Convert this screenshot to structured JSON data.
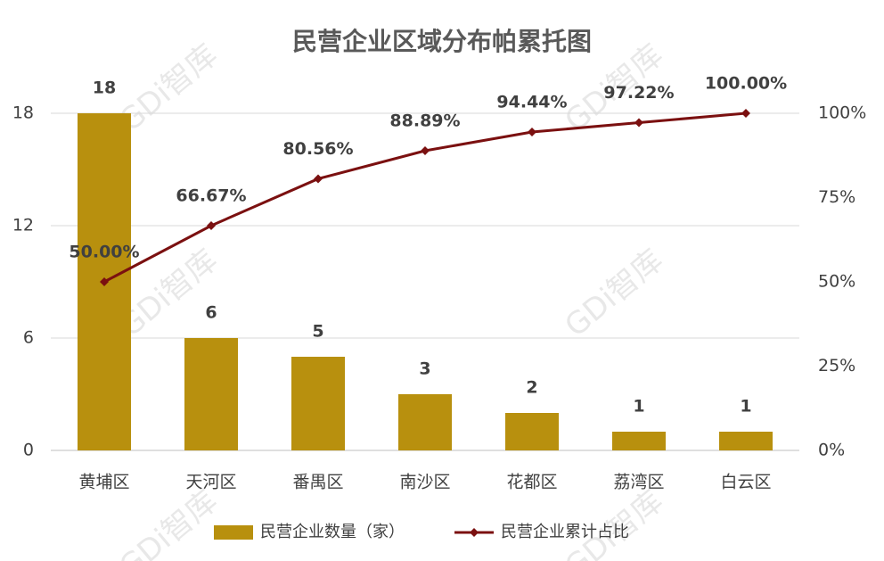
{
  "chart_data": {
    "type": "bar",
    "title": "民营企业区域分布帕累托图",
    "watermark": "GDi智库",
    "categories": [
      "黄埔区",
      "天河区",
      "番禺区",
      "南沙区",
      "花都区",
      "荔湾区",
      "白云区"
    ],
    "series": [
      {
        "name": "民营企业数量（家）",
        "type": "bar",
        "color": "#b8900e",
        "values": [
          18,
          6,
          5,
          3,
          2,
          1,
          1
        ]
      },
      {
        "name": "民营企业累计占比",
        "type": "line",
        "axis": "y2",
        "color": "#7b1010",
        "values": [
          50,
          66.67,
          80.56,
          88.89,
          94.44,
          97.22,
          100
        ],
        "value_labels": [
          "50.00%",
          "66.67%",
          "80.56%",
          "88.89%",
          "94.44%",
          "97.22%",
          "100.00%"
        ]
      }
    ],
    "ylim": [
      0,
      18
    ],
    "yticks": [
      0,
      6,
      12,
      18
    ],
    "y2lim": [
      0,
      100
    ],
    "y2ticks": [
      {
        "value": 0,
        "label": "0%"
      },
      {
        "value": 25,
        "label": "25%"
      },
      {
        "value": 50,
        "label": "50%"
      },
      {
        "value": 75,
        "label": "75%"
      },
      {
        "value": 100,
        "label": "100%"
      }
    ],
    "grid": true,
    "legend": "bottom"
  }
}
